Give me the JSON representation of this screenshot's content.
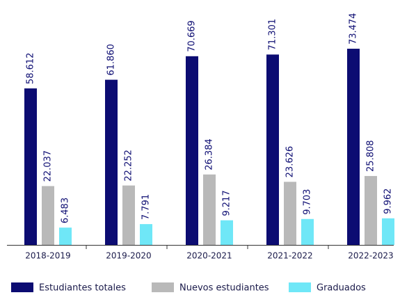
{
  "chart_data": {
    "type": "bar",
    "categories": [
      "2018-2019",
      "2019-2020",
      "2020-2021",
      "2021-2022",
      "2022-2023"
    ],
    "series": [
      {
        "name": "Estudiantes totales",
        "color": "#0c0c72",
        "values": [
          58612,
          61860,
          70669,
          71301,
          73474
        ],
        "value_labels": [
          "58.612",
          "61.860",
          "70.669",
          "71.301",
          "73.474"
        ]
      },
      {
        "name": "Nuevos estudiantes",
        "color": "#b9b9b9",
        "values": [
          22037,
          22252,
          26384,
          23626,
          25808
        ],
        "value_labels": [
          "22.037",
          "22.252",
          "26.384",
          "23.626",
          "25.808"
        ]
      },
      {
        "name": "Graduados",
        "color": "#6fe7f7",
        "values": [
          6483,
          7791,
          9217,
          9703,
          9962
        ],
        "value_labels": [
          "6.483",
          "7.791",
          "9.217",
          "9.703",
          "9.962"
        ]
      }
    ],
    "ylim": [
      0,
      80000
    ],
    "legend": "bottom"
  }
}
